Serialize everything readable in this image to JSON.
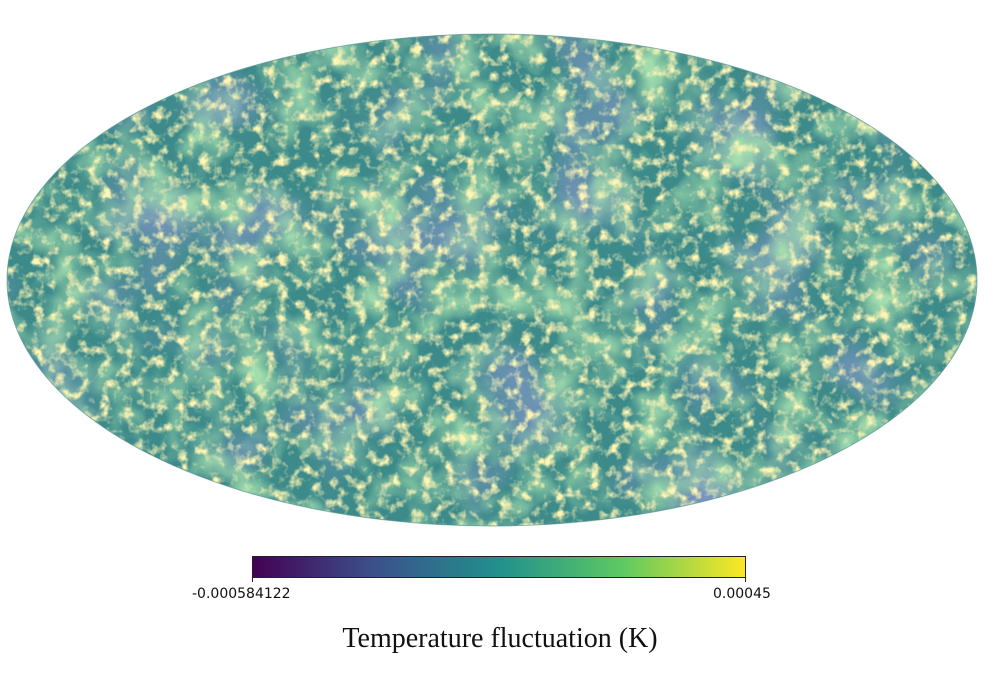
{
  "map": {
    "projection": "mollweide",
    "colormap": "viridis",
    "colormap_stops": [
      "#440154",
      "#3b528b",
      "#21908d",
      "#5dc962",
      "#fde725"
    ]
  },
  "colorbar": {
    "min_label": "-0.000584122",
    "max_label": "0.00045",
    "label": "Temperature fluctuation (K)",
    "vmin": -0.000584122,
    "vmax": 0.00045
  }
}
